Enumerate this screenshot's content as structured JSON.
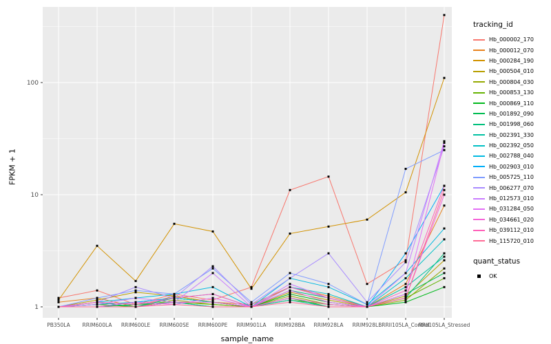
{
  "chart_data": {
    "type": "line",
    "xlabel": "sample_name",
    "ylabel": "FPKM + 1",
    "y_scale": "log10",
    "y_ticks": [
      1,
      10,
      100
    ],
    "ylim": [
      1,
      480
    ],
    "panel_bg": "#EBEBEB",
    "grid_color": "#FFFFFF",
    "tick_text_color": "#4D4D4D",
    "point_color": "#000000",
    "categories": [
      "PB350LA",
      "RRIM600LA",
      "RRIM600LE",
      "RRIM600SE",
      "RRIM600PE",
      "RRIM901LA",
      "RRIM928BA",
      "RRIM928LA",
      "RRIM928LB",
      "RRII105LA_Control",
      "RRII105LA_Stressed"
    ],
    "series": [
      {
        "name": "Hb_000002_170",
        "color": "#F8766D",
        "values": [
          1.2,
          1.4,
          1.05,
          1.3,
          1.15,
          1.5,
          11,
          14.5,
          1.6,
          2.6,
          400
        ]
      },
      {
        "name": "Hb_000012_070",
        "color": "#E8821D",
        "values": [
          1.1,
          1.2,
          1.0,
          1.25,
          1.1,
          1.05,
          1.5,
          1.25,
          1.0,
          1.6,
          8
        ]
      },
      {
        "name": "Hb_000284_190",
        "color": "#D29200",
        "values": [
          1.15,
          3.5,
          1.7,
          5.5,
          4.7,
          1.45,
          4.5,
          5.2,
          6,
          10.5,
          110
        ]
      },
      {
        "name": "Hb_000504_010",
        "color": "#B79F00",
        "values": [
          1,
          1.15,
          1.35,
          1.25,
          1.1,
          1,
          1.35,
          1.15,
          1,
          1.25,
          2.6
        ]
      },
      {
        "name": "Hb_000804_030",
        "color": "#94A800",
        "values": [
          1,
          1.05,
          1,
          1.15,
          1.05,
          1,
          1.25,
          1.05,
          1,
          1.15,
          2.2
        ]
      },
      {
        "name": "Hb_000853_130",
        "color": "#64B200",
        "values": [
          1,
          1.05,
          1,
          1.1,
          1.05,
          1,
          1.15,
          1.05,
          1,
          1.2,
          1.8
        ]
      },
      {
        "name": "Hb_000869_110",
        "color": "#00B81B",
        "values": [
          1,
          1,
          1,
          1.2,
          1.1,
          1,
          1.3,
          1.1,
          1,
          1.1,
          1.5
        ]
      },
      {
        "name": "Hb_001892_090",
        "color": "#00BC51",
        "values": [
          1,
          1,
          1.05,
          1.1,
          1,
          1,
          1.2,
          1,
          1,
          1.3,
          2.0
        ]
      },
      {
        "name": "Hb_001998_060",
        "color": "#00C07C",
        "values": [
          1,
          1.1,
          1,
          1.2,
          1.1,
          1,
          1.4,
          1.2,
          1,
          1.2,
          3.0
        ]
      },
      {
        "name": "Hb_002391_330",
        "color": "#00C1A2",
        "values": [
          1,
          1,
          1,
          1.1,
          1,
          1,
          1.15,
          1,
          1,
          1.5,
          2.8
        ]
      },
      {
        "name": "Hb_002392_050",
        "color": "#00BFC4",
        "values": [
          1,
          1.05,
          1.1,
          1.2,
          1.1,
          1,
          1.5,
          1.3,
          1,
          1.8,
          4.0
        ]
      },
      {
        "name": "Hb_002788_040",
        "color": "#00B9E1",
        "values": [
          1,
          1.1,
          1.2,
          1.3,
          1.5,
          1,
          1.8,
          1.5,
          1.05,
          2.0,
          5.0
        ]
      },
      {
        "name": "Hb_002903_010",
        "color": "#00AEF8",
        "values": [
          1,
          1,
          1.1,
          1.2,
          1.3,
          1,
          1.5,
          1.2,
          1,
          3.0,
          12
        ]
      },
      {
        "name": "Hb_005725_110",
        "color": "#7F9CFF",
        "values": [
          1,
          1.2,
          1.4,
          1.3,
          2.2,
          1.1,
          2.0,
          1.6,
          1.05,
          17,
          25
        ]
      },
      {
        "name": "Hb_006277_070",
        "color": "#A88BFF",
        "values": [
          1,
          1.1,
          1.5,
          1.2,
          2.3,
          1.05,
          1.8,
          3.0,
          1.1,
          2.5,
          27
        ]
      },
      {
        "name": "Hb_012573_010",
        "color": "#C97DFF",
        "values": [
          1,
          1.05,
          1.2,
          1.1,
          2.0,
          1,
          1.6,
          1.2,
          1,
          2.0,
          30
        ]
      },
      {
        "name": "Hb_031284_050",
        "color": "#E36EF6",
        "values": [
          1,
          1,
          1.1,
          1.05,
          1.2,
          1,
          1.4,
          1.1,
          1,
          1.3,
          29
        ]
      },
      {
        "name": "Hb_034661_020",
        "color": "#F564D8",
        "values": [
          1,
          1,
          1,
          1.1,
          1.1,
          1,
          1.2,
          1.05,
          1,
          1.2,
          10
        ]
      },
      {
        "name": "Hb_039112_010",
        "color": "#FF61B9",
        "values": [
          1,
          1.1,
          1.05,
          1.2,
          1.3,
          1,
          1.5,
          1.2,
          1,
          1.4,
          12
        ]
      },
      {
        "name": "Hb_115720_010",
        "color": "#FF6B96",
        "values": [
          1,
          1,
          1,
          1.05,
          1,
          1,
          1.1,
          1,
          1,
          1.2,
          11
        ]
      }
    ],
    "legend": {
      "color_title": "tracking_id",
      "shape_title": "quant_status",
      "shape_items": [
        {
          "label": "OK",
          "shape": "square",
          "color": "#000000"
        }
      ]
    }
  }
}
